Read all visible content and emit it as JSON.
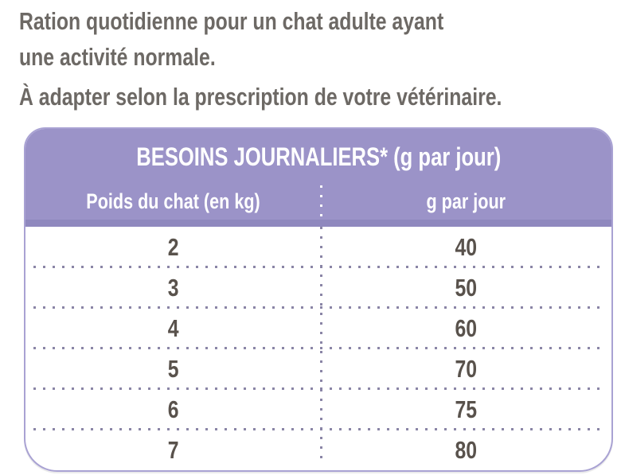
{
  "intro": {
    "line1": "Ration quotidienne pour un chat adulte ayant",
    "line2": "une activité normale.",
    "note": "À adapter selon la prescription de votre vétérinaire."
  },
  "table": {
    "title": "BESOINS JOURNALIERS* (g par jour)",
    "columns": {
      "left": "Poids du chat (en kg)",
      "right": "g par jour"
    },
    "rows": [
      {
        "poids": "2",
        "grams": "40"
      },
      {
        "poids": "3",
        "grams": "50"
      },
      {
        "poids": "4",
        "grams": "60"
      },
      {
        "poids": "5",
        "grams": "70"
      },
      {
        "poids": "6",
        "grams": "75"
      },
      {
        "poids": "7",
        "grams": "80"
      }
    ]
  },
  "colors": {
    "header_purple": "#9b93c8",
    "header_strip": "#8f88be",
    "border_purple": "#a9a2d3",
    "dot_color": "#8a85a6",
    "intro_text": "#6d6965",
    "number_color": "#59524c"
  }
}
